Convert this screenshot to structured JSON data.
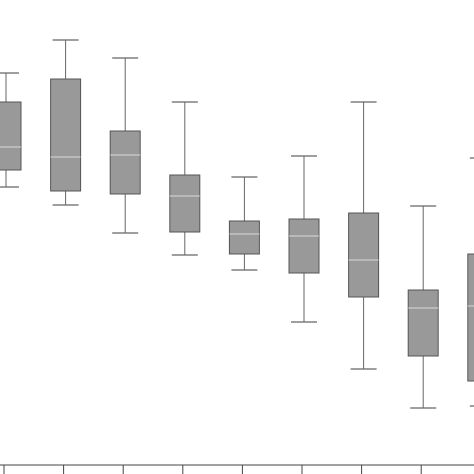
{
  "chart_data": {
    "type": "box",
    "title": "",
    "xlabel": "",
    "ylabel": "",
    "ylim": [
      0,
      474
    ],
    "grid": false,
    "colors": {
      "box_fill": "#999999",
      "box_stroke": "#555555",
      "median": "#d9d9d9",
      "whisker": "#666666",
      "axis": "#444444"
    },
    "boxes": [
      {
        "min": 287,
        "q1": 304,
        "median": 327,
        "q3": 372,
        "max": 401
      },
      {
        "min": 269,
        "q1": 283,
        "median": 317,
        "q3": 395,
        "max": 434
      },
      {
        "min": 241,
        "q1": 280,
        "median": 319,
        "q3": 343,
        "max": 416
      },
      {
        "min": 219,
        "q1": 242,
        "median": 278,
        "q3": 299,
        "max": 372
      },
      {
        "min": 204,
        "q1": 220,
        "median": 240,
        "q3": 253,
        "max": 297
      },
      {
        "min": 152,
        "q1": 201,
        "median": 238,
        "q3": 255,
        "max": 318
      },
      {
        "min": 105,
        "q1": 177,
        "median": 214,
        "q3": 261,
        "max": 372
      },
      {
        "min": 66,
        "q1": 118,
        "median": 166,
        "q3": 184,
        "max": 268
      },
      {
        "min": 68,
        "q1": 93,
        "median": 168,
        "q3": 220,
        "max": 316
      }
    ]
  }
}
